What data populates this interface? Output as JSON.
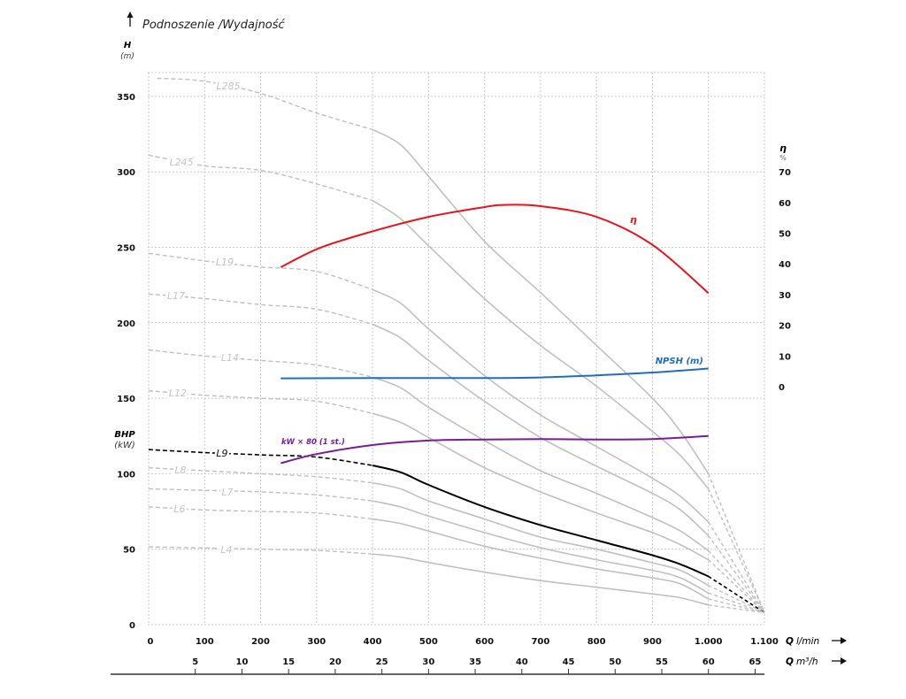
{
  "chart_data": {
    "type": "line",
    "title": "Podnoszenie /Wydajność",
    "y_left": {
      "label": "H",
      "unit": "(m)",
      "range": [
        0,
        365
      ],
      "ticks": [
        0,
        50,
        100,
        150,
        200,
        250,
        300,
        350
      ]
    },
    "y_left_secondary": {
      "label": "BHP",
      "unit": "(kW)"
    },
    "y_right": {
      "label": "η",
      "unit": "%",
      "ticks": [
        0,
        10,
        20,
        30,
        40,
        50,
        60,
        70
      ]
    },
    "x": {
      "label": "Q",
      "unit": "l/min",
      "range": [
        0,
        1100
      ],
      "ticks": [
        0,
        100,
        200,
        300,
        400,
        500,
        600,
        700,
        800,
        900,
        1000,
        1100
      ],
      "tick_labels": [
        "0",
        "100",
        "200",
        "300",
        "400",
        "500",
        "600",
        "700",
        "800",
        "900",
        "1.000",
        "1.100"
      ]
    },
    "x_secondary": {
      "label": "Q",
      "unit": "m³/h",
      "ticks": [
        5,
        10,
        15,
        20,
        25,
        30,
        35,
        40,
        45,
        50,
        55,
        60,
        65
      ]
    },
    "grid": true,
    "curves": [
      {
        "name": "L285",
        "color": "#c0c0c0",
        "q": [
          15,
          100,
          200,
          300,
          400,
          450,
          500,
          600,
          700,
          800,
          900,
          950,
          1000,
          1100
        ],
        "h": [
          362,
          360,
          352,
          339,
          328,
          318,
          297,
          254,
          220,
          185,
          150,
          128,
          100,
          8
        ]
      },
      {
        "name": "L245",
        "color": "#c0c0c0",
        "q": [
          0,
          100,
          200,
          300,
          400,
          450,
          500,
          600,
          700,
          800,
          900,
          950,
          1000,
          1100
        ],
        "h": [
          311,
          304,
          301,
          292,
          281,
          269,
          251,
          216,
          185,
          158,
          128,
          112,
          90,
          8
        ]
      },
      {
        "name": "L19",
        "color": "#c0c0c0",
        "q": [
          0,
          100,
          200,
          300,
          400,
          450,
          500,
          600,
          700,
          800,
          900,
          950,
          1000,
          1100
        ],
        "h": [
          246,
          241,
          237,
          234,
          222,
          213,
          196,
          165,
          139,
          118,
          97,
          85,
          68,
          8
        ]
      },
      {
        "name": "L17",
        "color": "#c0c0c0",
        "q": [
          0,
          100,
          200,
          300,
          400,
          450,
          500,
          600,
          700,
          800,
          900,
          950,
          1000,
          1100
        ],
        "h": [
          219,
          216,
          212,
          209,
          199,
          190,
          175,
          148,
          124,
          105,
          87,
          76,
          59,
          8
        ]
      },
      {
        "name": "L14",
        "color": "#c0c0c0",
        "q": [
          0,
          100,
          200,
          300,
          400,
          450,
          500,
          600,
          700,
          800,
          900,
          950,
          1000,
          1100
        ],
        "h": [
          182,
          178,
          175,
          172,
          164,
          157,
          144,
          122,
          102,
          87,
          71,
          62,
          49,
          8
        ]
      },
      {
        "name": "L12",
        "color": "#c0c0c0",
        "q": [
          0,
          100,
          200,
          300,
          400,
          450,
          500,
          600,
          700,
          800,
          900,
          950,
          1000,
          1100
        ],
        "h": [
          155,
          152,
          150,
          148,
          140,
          134,
          124,
          104,
          88,
          74,
          61,
          53,
          43,
          8
        ]
      },
      {
        "name": "L9",
        "color": "#000000",
        "q": [
          0,
          100,
          200,
          300,
          400,
          450,
          500,
          600,
          700,
          800,
          900,
          950,
          1000,
          1100
        ],
        "h": [
          116,
          114,
          112.5,
          111,
          105.5,
          101,
          92.6,
          78,
          66,
          56,
          46,
          40,
          32,
          8
        ]
      },
      {
        "name": "L8",
        "color": "#c0c0c0",
        "q": [
          0,
          100,
          200,
          300,
          400,
          450,
          500,
          600,
          700,
          800,
          900,
          950,
          1000,
          1100
        ],
        "h": [
          104,
          102,
          100,
          98,
          94,
          90,
          82,
          70,
          58,
          50,
          41,
          36,
          26,
          8
        ]
      },
      {
        "name": "L7",
        "color": "#c0c0c0",
        "q": [
          0,
          100,
          200,
          300,
          400,
          450,
          500,
          600,
          700,
          800,
          900,
          950,
          1000,
          1100
        ],
        "h": [
          90,
          89,
          88,
          86,
          82,
          78,
          72,
          61,
          51,
          43,
          36,
          31,
          21,
          8
        ]
      },
      {
        "name": "L6",
        "color": "#c0c0c0",
        "q": [
          0,
          100,
          200,
          300,
          400,
          450,
          500,
          600,
          700,
          800,
          900,
          950,
          1000,
          1100
        ],
        "h": [
          78,
          76,
          75,
          74,
          70,
          67,
          62,
          52,
          44,
          37,
          31,
          27,
          17,
          8
        ]
      },
      {
        "name": "L4",
        "color": "#c0c0c0",
        "q": [
          0,
          100,
          200,
          300,
          400,
          450,
          500,
          600,
          700,
          800,
          900,
          950,
          1000,
          1100
        ],
        "h": [
          51.6,
          50.8,
          50,
          49.2,
          46.8,
          44.8,
          41.2,
          34.8,
          29.2,
          24.8,
          20.4,
          17.8,
          13,
          8
        ]
      }
    ],
    "efficiency": {
      "name": "η",
      "axis": "right",
      "color": "#e8141c",
      "q": [
        236,
        306,
        400,
        500,
        600,
        636,
        700,
        800,
        900,
        1000
      ],
      "values": [
        38.9,
        45.2,
        50.6,
        55.3,
        58.5,
        59.2,
        58.8,
        55.3,
        46.2,
        30.5
      ]
    },
    "npsh": {
      "name": "NPSH (m)",
      "axis": "right",
      "color": "#1f6cc0",
      "q": [
        236,
        400,
        600,
        700,
        800,
        900,
        1000
      ],
      "values": [
        2.7,
        2.8,
        2.8,
        3.0,
        3.7,
        4.6,
        5.9
      ]
    },
    "power": {
      "name": "kW × 80 (1 st.)",
      "axis": "left",
      "color": "#7d1a9c",
      "q": [
        236,
        300,
        400,
        500,
        600,
        700,
        800,
        900,
        1000
      ],
      "values": [
        107,
        113,
        119,
        122,
        122.7,
        123,
        122.7,
        123,
        125
      ]
    }
  }
}
